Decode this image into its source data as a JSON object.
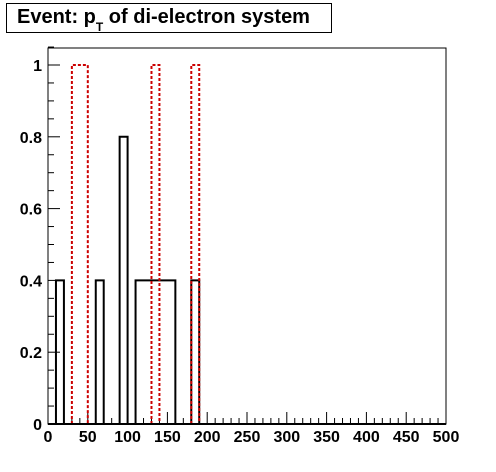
{
  "chart_data": {
    "type": "histogram",
    "title": {
      "prefix": "Event: p",
      "subscript": "T",
      "suffix": " of di-electron system"
    },
    "xlim": [
      0,
      500
    ],
    "ylim": [
      0,
      1.05
    ],
    "bin_width": 10,
    "x_ticks": [
      "0",
      "50",
      "100",
      "150",
      "200",
      "250",
      "300",
      "350",
      "400",
      "450",
      "500"
    ],
    "y_ticks": [
      "0",
      "0.2",
      "0.4",
      "0.6",
      "0.8",
      "1"
    ],
    "grid": false,
    "series": [
      {
        "style": "solid",
        "color": "#000000",
        "bins": [
          {
            "x0": 10,
            "x1": 20,
            "y": 0.4
          },
          {
            "x0": 60,
            "x1": 70,
            "y": 0.4
          },
          {
            "x0": 90,
            "x1": 100,
            "y": 0.8
          },
          {
            "x0": 110,
            "x1": 160,
            "y": 0.4
          },
          {
            "x0": 180,
            "x1": 190,
            "y": 0.4
          }
        ]
      },
      {
        "style": "dashed",
        "color": "#cc0000",
        "bins": [
          {
            "x0": 30,
            "x1": 50,
            "y": 1.0
          },
          {
            "x0": 130,
            "x1": 140,
            "y": 1.0
          },
          {
            "x0": 180,
            "x1": 190,
            "y": 1.0
          }
        ]
      }
    ]
  }
}
